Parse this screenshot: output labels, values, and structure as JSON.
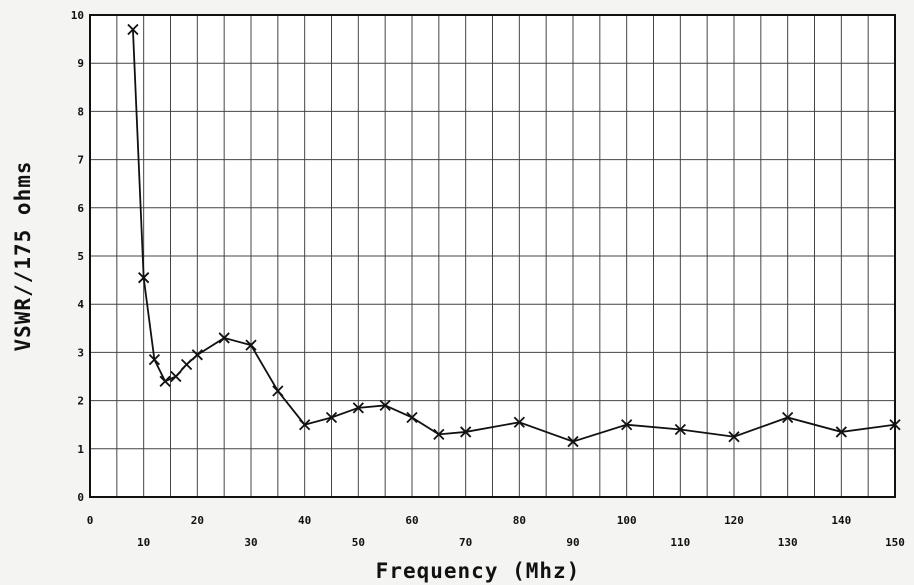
{
  "chart_data": {
    "type": "line",
    "title": "",
    "xlabel": "Frequency (Mhz)",
    "ylabel": "VSWR//175 ohms",
    "xlim": [
      0,
      150
    ],
    "ylim": [
      0,
      10
    ],
    "x_ticks": [
      0,
      10,
      20,
      30,
      40,
      50,
      60,
      70,
      80,
      90,
      100,
      110,
      120,
      130,
      140,
      150
    ],
    "y_ticks": [
      0,
      1,
      2,
      3,
      4,
      5,
      6,
      7,
      8,
      9,
      10
    ],
    "grid": true,
    "marker": "x",
    "series": [
      {
        "x": [
          8,
          10,
          12,
          14,
          16,
          18,
          20,
          25,
          30,
          35,
          40,
          45,
          50,
          55,
          60,
          65,
          70,
          80,
          90,
          100,
          110,
          120,
          130,
          140,
          150
        ],
        "y": [
          9.7,
          4.55,
          2.85,
          2.4,
          2.5,
          2.75,
          2.95,
          3.3,
          3.15,
          2.2,
          1.5,
          1.65,
          1.85,
          1.9,
          1.65,
          1.3,
          1.35,
          1.55,
          1.15,
          1.5,
          1.4,
          1.25,
          1.65,
          1.35,
          1.5
        ]
      }
    ]
  }
}
